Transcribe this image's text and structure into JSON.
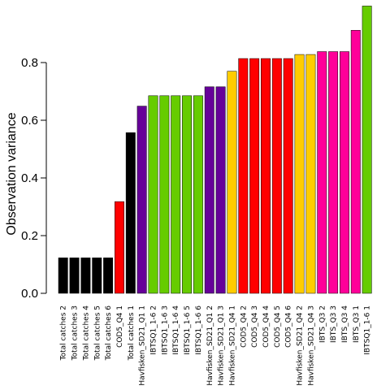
{
  "chart_data": {
    "type": "bar",
    "title": "",
    "xlabel": "",
    "ylabel": "Observation variance",
    "ylim": [
      0,
      1.0
    ],
    "yticks": [
      "0.0",
      "0.2",
      "0.4",
      "0.6",
      "0.8"
    ],
    "ytick_values": [
      0.0,
      0.2,
      0.4,
      0.6,
      0.8
    ],
    "grid": false,
    "legend": "none",
    "categories": [
      "Total catches 2",
      "Total catches 3",
      "Total catches 4",
      "Total catches 5",
      "Total catches 6",
      "COD5_Q4 1",
      "Total catches 1",
      "Havfisken_SD21_Q1 1",
      "IBTSQ1_1-6 2",
      "IBTSQ1_1-6 3",
      "IBTSQ1_1-6 4",
      "IBTSQ1_1-6 5",
      "IBTSQ1_1-6 6",
      "Havfisken_SD21_Q1 2",
      "Havfisken_SD21_Q1 3",
      "Havfisken_SD21_Q4 1",
      "COD5_Q4 2",
      "COD5_Q4 3",
      "COD5_Q4 4",
      "COD5_Q4 5",
      "COD5_Q4 6",
      "Havfisken_SD21_Q4 2",
      "Havfisken_SD21_Q4 3",
      "IBTS_Q3 2",
      "IBTS_Q3 3",
      "IBTS_Q3 4",
      "IBTS_Q3 1",
      "IBTSQ1_1-6 1"
    ],
    "values": [
      0.123,
      0.123,
      0.123,
      0.123,
      0.123,
      0.318,
      0.557,
      0.649,
      0.685,
      0.685,
      0.685,
      0.685,
      0.685,
      0.716,
      0.716,
      0.77,
      0.814,
      0.814,
      0.814,
      0.814,
      0.814,
      0.828,
      0.828,
      0.838,
      0.838,
      0.838,
      0.912,
      0.996
    ],
    "colors": [
      "#000000",
      "#000000",
      "#000000",
      "#000000",
      "#000000",
      "#ff0000",
      "#000000",
      "#660099",
      "#66cc00",
      "#66cc00",
      "#66cc00",
      "#66cc00",
      "#66cc00",
      "#660099",
      "#660099",
      "#ffcc00",
      "#ff0000",
      "#ff0000",
      "#ff0000",
      "#ff0000",
      "#ff0000",
      "#ffcc00",
      "#ffcc00",
      "#ff0099",
      "#ff0099",
      "#ff0099",
      "#ff0099",
      "#66cc00"
    ]
  }
}
